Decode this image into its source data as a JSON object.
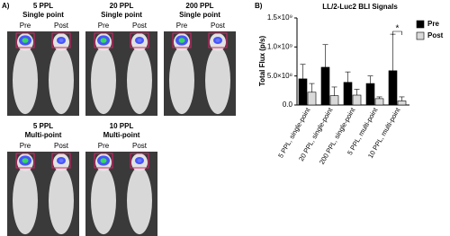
{
  "panel_a": {
    "label": "A)",
    "panels": [
      {
        "title": "5 PPL",
        "subtitle": "Single point",
        "left": "Pre",
        "right": "Post"
      },
      {
        "title": "20 PPL",
        "subtitle": "Single point",
        "left": "Pre",
        "right": "Post"
      },
      {
        "title": "200 PPL",
        "subtitle": "Single point",
        "left": "Pre",
        "right": "Post"
      },
      {
        "title": "5 PPL",
        "subtitle": "Multi-point",
        "left": "Pre",
        "right": "Post"
      },
      {
        "title": "10 PPL",
        "subtitle": "Multi-point",
        "left": "Pre",
        "right": "Post"
      }
    ]
  },
  "chart_data": {
    "type": "bar",
    "panel_label": "B)",
    "title": "LL/2-Luc2 BLI Signals",
    "y_label": "Total Flux (p/s)",
    "categories": [
      "5 PPL, single-point",
      "20 PPL, single-point",
      "200 PPL, single-point",
      "5 PPL, multi-point",
      "10 PPL, multi-point"
    ],
    "series": [
      {
        "name": "Pre",
        "color": "#000000",
        "values": [
          450000000,
          650000000,
          390000000,
          370000000,
          590000000
        ],
        "errors": [
          250000000,
          390000000,
          180000000,
          130000000,
          630000000
        ]
      },
      {
        "name": "Post",
        "color": "#d9d9d9",
        "values": [
          220000000,
          160000000,
          170000000,
          110000000,
          70000000
        ],
        "errors": [
          150000000,
          150000000,
          100000000,
          30000000,
          70000000
        ]
      }
    ],
    "ylim": [
      0,
      1500000000
    ],
    "yticks": [
      {
        "value": 0,
        "label": "0.0"
      },
      {
        "value": 500000000,
        "label": "5.0×10⁸"
      },
      {
        "value": 1000000000,
        "label": "1.0×10⁹"
      },
      {
        "value": 1500000000,
        "label": "1.5×10⁹"
      }
    ],
    "annotation": "*"
  }
}
